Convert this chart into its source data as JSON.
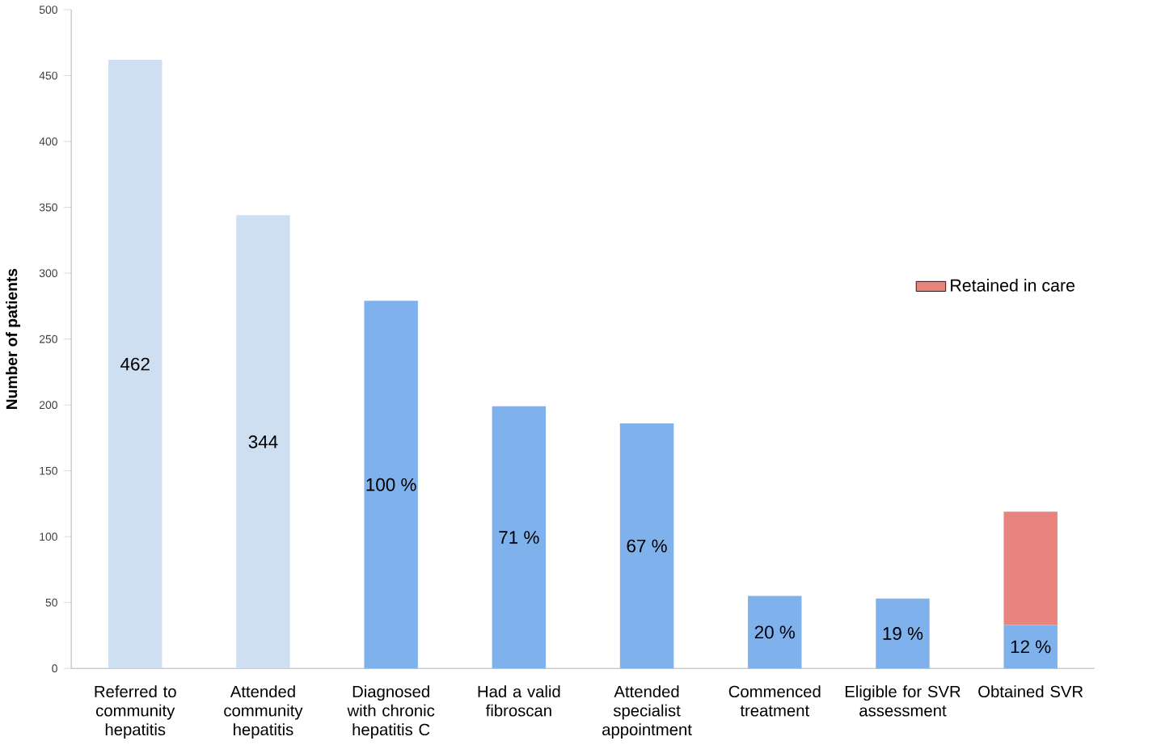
{
  "chart_data": {
    "type": "bar",
    "ylabel": "Number of patients",
    "categories": [
      "Referred to community hepatitis",
      "Attended community hepatitis",
      "Diagnosed with chronic hepatitis C",
      "Had a valid fibroscan",
      "Attended specialist appointment",
      "Commenced treatment",
      "Eligible for SVR assessment",
      "Obtained SVR"
    ],
    "series": [
      {
        "values": [
          462,
          344,
          279,
          199,
          186,
          55,
          53,
          33
        ],
        "colors": [
          "#cfdff2",
          "#cfdff2",
          "#7fb2ec",
          "#7fb2ec",
          "#7fb2ec",
          "#7fb2ec",
          "#7fb2ec",
          "#7fb2ec"
        ],
        "value_labels": [
          "462",
          "344",
          null,
          null,
          null,
          null,
          null,
          null
        ]
      },
      {
        "name": "Retained in care",
        "color": "#e9837d",
        "values": [
          null,
          null,
          null,
          null,
          null,
          null,
          null,
          86
        ]
      }
    ],
    "annotations": [
      "100 %",
      "71 %",
      "67 %",
      "20 %",
      "19 %",
      "12 %"
    ],
    "stacked": true,
    "ylim": [
      0,
      500
    ],
    "yticks": [
      0,
      50,
      100,
      150,
      200,
      250,
      300,
      350,
      400,
      450,
      500
    ],
    "grid": false,
    "legend": "right"
  }
}
